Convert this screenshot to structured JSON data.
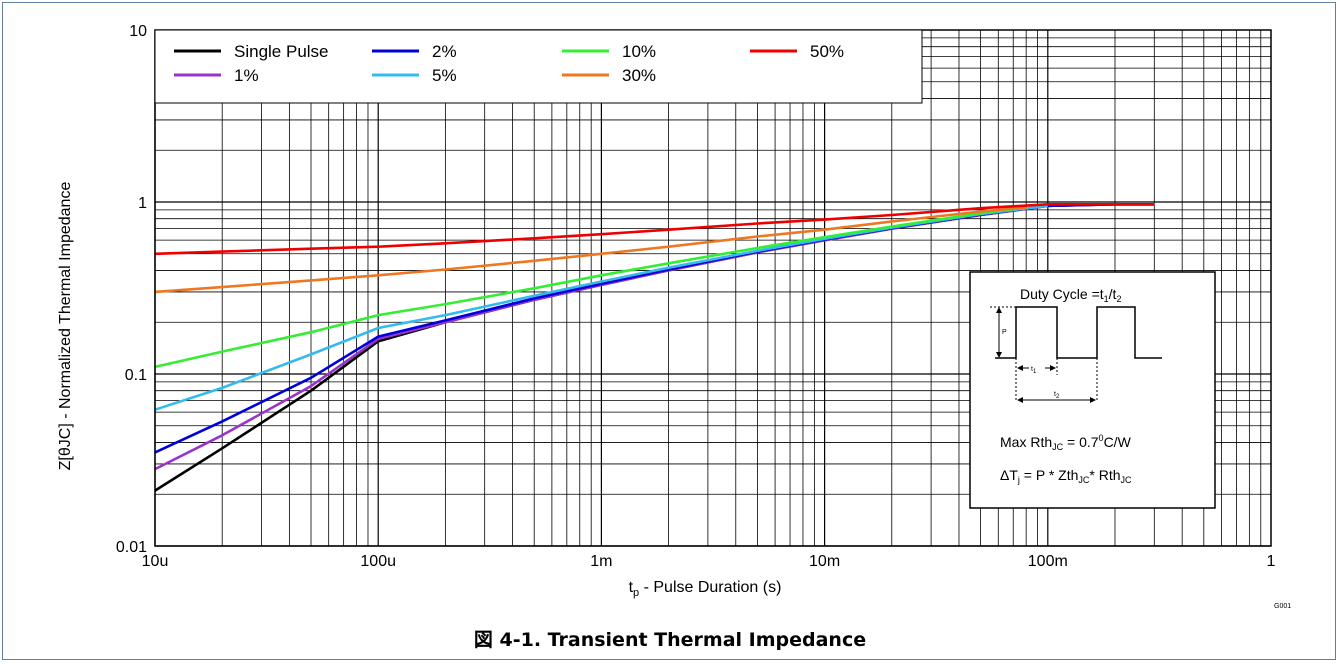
{
  "caption": "図 4-1. Transient Thermal Impedance",
  "chart_data": {
    "type": "line",
    "title": "",
    "xlabel_main": "t",
    "xlabel_sub": "p",
    "xlabel_rest": " - Pulse Duration (s)",
    "ylabel": "Z[θJC] - Normalized Thermal Impedance",
    "x_scale": "log",
    "y_scale": "log",
    "xlim": [
      1e-05,
      1
    ],
    "ylim": [
      0.01,
      10
    ],
    "grid": true,
    "legend_position": "top-left",
    "x_ticks": [
      {
        "value": 1e-05,
        "label": "10u"
      },
      {
        "value": 0.0001,
        "label": "100u"
      },
      {
        "value": 0.001,
        "label": "1m"
      },
      {
        "value": 0.01,
        "label": "10m"
      },
      {
        "value": 0.1,
        "label": "100m"
      },
      {
        "value": 1,
        "label": "1"
      }
    ],
    "y_ticks": [
      {
        "value": 0.01,
        "label": "0.01"
      },
      {
        "value": 0.1,
        "label": "0.1"
      },
      {
        "value": 1,
        "label": "1"
      },
      {
        "value": 10,
        "label": "10"
      }
    ],
    "series": [
      {
        "name": "Single Pulse",
        "color": "#000000",
        "x": [
          1e-05,
          2e-05,
          5e-05,
          0.0001,
          0.0002,
          0.0005,
          0.001,
          0.002,
          0.005,
          0.01,
          0.02,
          0.05,
          0.1,
          0.2,
          0.3
        ],
        "y": [
          0.021,
          0.037,
          0.08,
          0.155,
          0.2,
          0.27,
          0.33,
          0.4,
          0.51,
          0.6,
          0.7,
          0.84,
          0.95,
          0.97,
          0.97
        ]
      },
      {
        "name": "1%",
        "color": "#9933cc",
        "x": [
          1e-05,
          2e-05,
          5e-05,
          0.0001,
          0.0002,
          0.0005,
          0.001,
          0.002,
          0.005,
          0.01,
          0.02,
          0.05,
          0.1,
          0.2,
          0.3
        ],
        "y": [
          0.028,
          0.044,
          0.085,
          0.16,
          0.2,
          0.27,
          0.33,
          0.4,
          0.51,
          0.6,
          0.7,
          0.84,
          0.95,
          0.97,
          0.97
        ]
      },
      {
        "name": "2%",
        "color": "#0000dd",
        "x": [
          1e-05,
          2e-05,
          5e-05,
          0.0001,
          0.0002,
          0.0005,
          0.001,
          0.002,
          0.005,
          0.01,
          0.02,
          0.05,
          0.1,
          0.2,
          0.3
        ],
        "y": [
          0.035,
          0.053,
          0.095,
          0.165,
          0.205,
          0.275,
          0.335,
          0.405,
          0.515,
          0.605,
          0.705,
          0.845,
          0.95,
          0.97,
          0.97
        ]
      },
      {
        "name": "5%",
        "color": "#33bbee",
        "x": [
          1e-05,
          2e-05,
          5e-05,
          0.0001,
          0.0002,
          0.0005,
          0.001,
          0.002,
          0.005,
          0.01,
          0.02,
          0.05,
          0.1
        ],
        "y": [
          0.062,
          0.083,
          0.13,
          0.185,
          0.22,
          0.285,
          0.345,
          0.415,
          0.52,
          0.61,
          0.71,
          0.85,
          0.95
        ]
      },
      {
        "name": "10%",
        "color": "#33ee33",
        "x": [
          1e-05,
          2e-05,
          5e-05,
          0.0001,
          0.0002,
          0.0005,
          0.001,
          0.002,
          0.005,
          0.01,
          0.02,
          0.05,
          0.08
        ],
        "y": [
          0.11,
          0.135,
          0.175,
          0.22,
          0.255,
          0.315,
          0.375,
          0.44,
          0.54,
          0.625,
          0.72,
          0.86,
          0.93
        ]
      },
      {
        "name": "30%",
        "color": "#ee7722",
        "x": [
          1e-05,
          2e-05,
          5e-05,
          0.0001,
          0.0002,
          0.0005,
          0.001,
          0.002,
          0.005,
          0.01,
          0.02,
          0.05,
          0.08
        ],
        "y": [
          0.3,
          0.32,
          0.35,
          0.375,
          0.405,
          0.455,
          0.5,
          0.55,
          0.63,
          0.69,
          0.77,
          0.88,
          0.93
        ]
      },
      {
        "name": "50%",
        "color": "#ee0000",
        "x": [
          1e-05,
          2e-05,
          5e-05,
          0.0001,
          0.0002,
          0.0005,
          0.001,
          0.002,
          0.005,
          0.01,
          0.02,
          0.05,
          0.1,
          0.2,
          0.3
        ],
        "y": [
          0.5,
          0.515,
          0.535,
          0.55,
          0.575,
          0.615,
          0.65,
          0.69,
          0.75,
          0.79,
          0.84,
          0.92,
          0.97,
          0.97,
          0.97
        ]
      }
    ],
    "figure_id": "G001",
    "inset": {
      "duty_prefix": "Duty Cycle =t",
      "duty_sub1": "1",
      "duty_slash": "/t",
      "duty_sub2": "2",
      "p_label": "P",
      "t1_main": "t",
      "t1_sub": "1",
      "t2_main": "t",
      "t2_sub": "2",
      "rth_prefix": "Max Rth",
      "rth_sub": "JC",
      "rth_value": " = 0.7",
      "rth_sup": "0",
      "rth_unit": "C/W",
      "dt_prefix": "ΔT",
      "dt_sub": "j",
      "dt_mid": " = P * Zth",
      "dt_sub2": "JC",
      "dt_mid2": "* Rth",
      "dt_sub3": "JC"
    }
  }
}
